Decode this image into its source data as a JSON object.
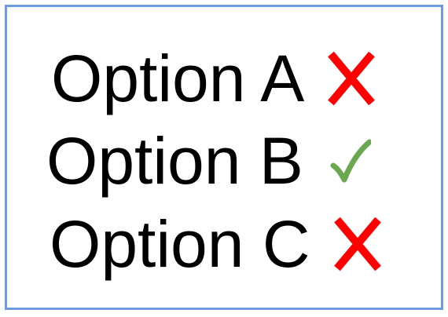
{
  "options": [
    {
      "label": "Option A",
      "status": "incorrect",
      "icon": "cross-icon",
      "color": "#ff0000"
    },
    {
      "label": "Option B",
      "status": "correct",
      "icon": "check-icon",
      "color": "#6aa84f"
    },
    {
      "label": "Option C",
      "status": "incorrect",
      "icon": "cross-icon",
      "color": "#ff0000"
    }
  ],
  "colors": {
    "border": "#6f9ae0",
    "text": "#000000"
  }
}
